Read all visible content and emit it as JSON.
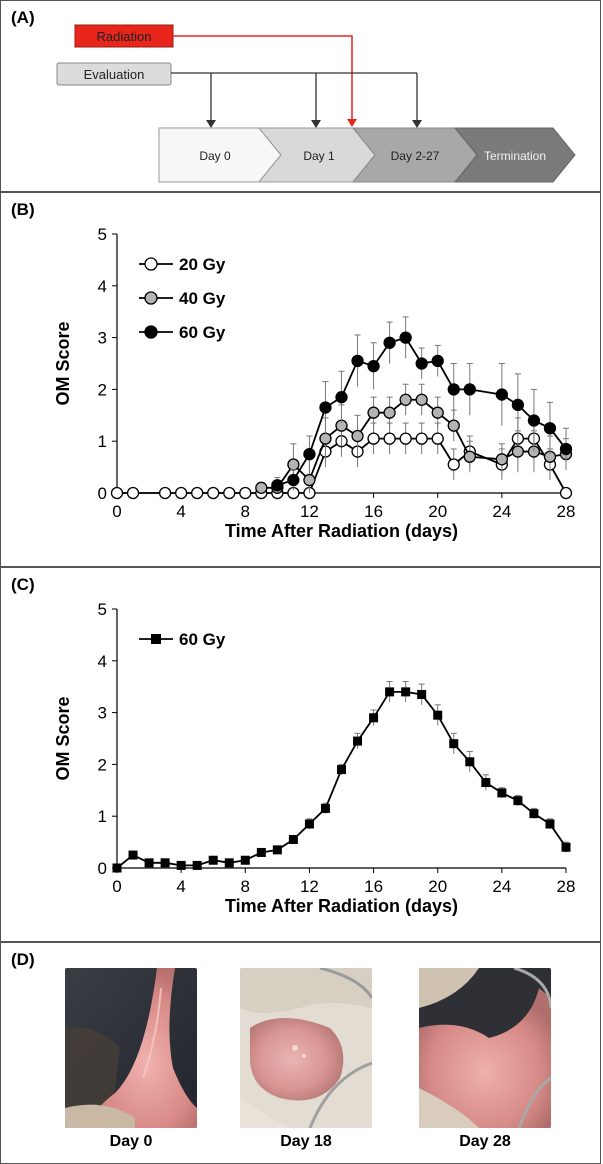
{
  "panel_labels": {
    "a": "(A)",
    "b": "(B)",
    "c": "(C)",
    "d": "(D)"
  },
  "timeline": {
    "radiation_label": "Radiation",
    "evaluation_label": "Evaluation",
    "stages": [
      "Day 0",
      "Day 1",
      "Day 2-27",
      "Termination"
    ],
    "colors": {
      "radiation": "#e8261b",
      "evaluation_box": "#dcdcdc",
      "line": "#333333"
    }
  },
  "chart_data": [
    {
      "type": "line",
      "xlabel": "Time After Radiation (days)",
      "ylabel": "OM Score",
      "xlim": [
        0,
        28
      ],
      "ylim": [
        0,
        5
      ],
      "xticks": [
        0,
        4,
        8,
        12,
        16,
        20,
        24,
        28
      ],
      "yticks": [
        0,
        1,
        2,
        3,
        4,
        5
      ],
      "legend_position": "top-left",
      "series": [
        {
          "name": "20 Gy",
          "marker": "circle-open",
          "color": "#ffffff",
          "x": [
            0,
            1,
            3,
            4,
            5,
            6,
            7,
            8,
            9,
            10,
            11,
            12,
            13,
            14,
            15,
            16,
            17,
            18,
            19,
            20,
            21,
            22,
            24,
            25,
            26,
            27,
            28
          ],
          "y": [
            0,
            0,
            0,
            0,
            0,
            0,
            0,
            0,
            0,
            0,
            0,
            0,
            0.8,
            1.0,
            0.8,
            1.05,
            1.05,
            1.05,
            1.05,
            1.05,
            0.55,
            0.8,
            0.55,
            1.05,
            1.05,
            0.55,
            0
          ],
          "err": [
            0,
            0,
            0,
            0,
            0,
            0,
            0,
            0,
            0,
            0,
            0,
            0,
            0.3,
            0.3,
            0.3,
            0.3,
            0.3,
            0.3,
            0.3,
            0.3,
            0.3,
            0.3,
            0.3,
            0.4,
            0.4,
            0.3,
            0
          ]
        },
        {
          "name": "40 Gy",
          "marker": "circle-gray",
          "color": "#b3b3b3",
          "x": [
            9,
            10,
            11,
            12,
            13,
            14,
            15,
            16,
            17,
            18,
            19,
            20,
            21,
            22,
            24,
            25,
            26,
            27,
            28
          ],
          "y": [
            0.1,
            0.1,
            0.55,
            0.25,
            1.05,
            1.3,
            1.1,
            1.55,
            1.55,
            1.8,
            1.8,
            1.55,
            1.3,
            0.7,
            0.65,
            0.8,
            0.8,
            0.7,
            0.75
          ],
          "err": [
            0.1,
            0.2,
            0.4,
            0.4,
            0.4,
            0.4,
            0.4,
            0.3,
            0.3,
            0.3,
            0.3,
            0.3,
            0.3,
            0.3,
            0.3,
            0.4,
            0.4,
            0.4,
            0.3
          ]
        },
        {
          "name": "60 Gy",
          "marker": "circle-filled",
          "color": "#000000",
          "x": [
            10,
            11,
            12,
            13,
            14,
            15,
            16,
            17,
            18,
            19,
            20,
            21,
            22,
            24,
            25,
            26,
            27,
            28
          ],
          "y": [
            0.15,
            0.25,
            0.75,
            1.65,
            1.85,
            2.55,
            2.45,
            2.9,
            3.0,
            2.5,
            2.55,
            2.0,
            2.0,
            1.9,
            1.7,
            1.4,
            1.25,
            0.85
          ],
          "err": [
            0.1,
            0.2,
            0.35,
            0.5,
            0.5,
            0.5,
            0.45,
            0.4,
            0.4,
            0.3,
            0.3,
            0.5,
            0.5,
            0.6,
            0.6,
            0.6,
            0.5,
            0.4
          ]
        }
      ]
    },
    {
      "type": "line",
      "xlabel": "Time After Radiation (days)",
      "ylabel": "OM Score",
      "xlim": [
        0,
        28
      ],
      "ylim": [
        0,
        5
      ],
      "xticks": [
        0,
        4,
        8,
        12,
        16,
        20,
        24,
        28
      ],
      "yticks": [
        0,
        1,
        2,
        3,
        4,
        5
      ],
      "legend_position": "top-left",
      "series": [
        {
          "name": "60 Gy",
          "marker": "square-filled",
          "color": "#000000",
          "x": [
            0,
            1,
            2,
            3,
            4,
            5,
            6,
            7,
            8,
            9,
            10,
            11,
            12,
            13,
            14,
            15,
            16,
            17,
            18,
            19,
            20,
            21,
            22,
            23,
            24,
            25,
            26,
            27,
            28
          ],
          "y": [
            0.0,
            0.25,
            0.1,
            0.1,
            0.05,
            0.05,
            0.15,
            0.1,
            0.15,
            0.3,
            0.35,
            0.55,
            0.85,
            1.15,
            1.9,
            2.45,
            2.9,
            3.4,
            3.4,
            3.35,
            2.95,
            2.4,
            2.05,
            1.65,
            1.45,
            1.3,
            1.05,
            0.85,
            0.4
          ],
          "err": [
            0.05,
            0.05,
            0.05,
            0.05,
            0.05,
            0.05,
            0.05,
            0.05,
            0.05,
            0.05,
            0.05,
            0.05,
            0.1,
            0.1,
            0.1,
            0.15,
            0.15,
            0.2,
            0.2,
            0.2,
            0.2,
            0.2,
            0.2,
            0.15,
            0.1,
            0.1,
            0.1,
            0.1,
            0.1
          ]
        }
      ]
    }
  ],
  "photos": {
    "captions": [
      "Day 0",
      "Day 18",
      "Day 28"
    ]
  }
}
